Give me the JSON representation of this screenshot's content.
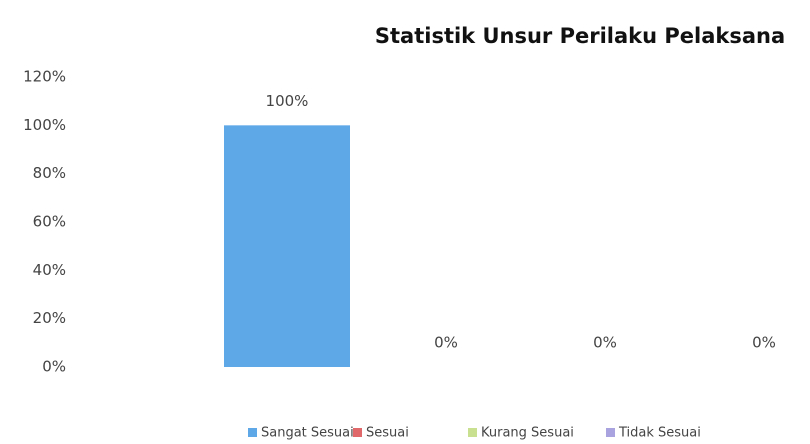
{
  "chart_data": {
    "type": "bar",
    "title": "Statistik Unsur Perilaku Pelaksana",
    "categories": [
      null
    ],
    "series": [
      {
        "name": "Sangat Sesuai",
        "color": "#5ea8e8",
        "values": [
          100
        ],
        "value_labels": [
          "100%"
        ]
      },
      {
        "name": "Sesuai",
        "color": "#e0676a",
        "values": [
          0
        ],
        "value_labels": [
          "0%"
        ]
      },
      {
        "name": "Kurang Sesuai",
        "color": "#c8e08f",
        "values": [
          0
        ],
        "value_labels": [
          "0%"
        ]
      },
      {
        "name": "Tidak Sesuai",
        "color": "#a9a3e0",
        "values": [
          0
        ],
        "value_labels": [
          "0%"
        ]
      }
    ],
    "ylim": [
      0,
      120
    ],
    "yticks": [
      {
        "value": 0,
        "label": "0%"
      },
      {
        "value": 20,
        "label": "20%"
      },
      {
        "value": 40,
        "label": "40%"
      },
      {
        "value": 60,
        "label": "60%"
      },
      {
        "value": 80,
        "label": "80%"
      },
      {
        "value": 100,
        "label": "100%"
      },
      {
        "value": 120,
        "label": "120%"
      }
    ],
    "grid": false,
    "legend": "bottom"
  }
}
